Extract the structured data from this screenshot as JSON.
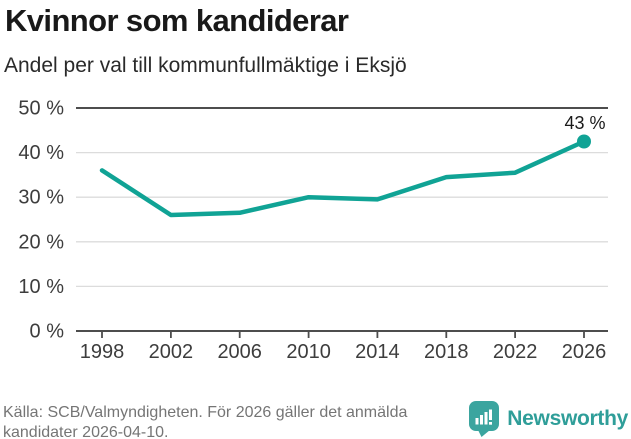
{
  "chart_data": {
    "type": "line",
    "title": "Kvinnor som kandiderar",
    "subtitle": "Andel per val till kommunfullmäktige i Eksjö",
    "x": [
      1998,
      2002,
      2006,
      2010,
      2014,
      2018,
      2022,
      2026
    ],
    "values": [
      36,
      26,
      26.5,
      30,
      29.5,
      34.5,
      35.5,
      42.5
    ],
    "ylim": [
      0,
      50
    ],
    "yticks": [
      0,
      10,
      20,
      30,
      40,
      50
    ],
    "ytick_labels": [
      "0 %",
      "10 %",
      "20 %",
      "30 %",
      "40 %",
      "50 %"
    ],
    "point_label": "43 %",
    "grid": true,
    "legend": false
  },
  "footer": {
    "source": "Källa: SCB/Valmyndigheten. För 2026 gäller det anmälda kandidater 2026-04-10.",
    "brand": "Newsworthy"
  },
  "colors": {
    "line": "#10a395",
    "grid_light": "#dcdcdc",
    "axis_dark": "#4d4d4d",
    "tick_text": "#3d3d3d",
    "annotation_text": "#1a1a1a",
    "muted_text": "#757575",
    "brand_teal": "#3ba59f",
    "brand_text": "#2f9e99"
  }
}
